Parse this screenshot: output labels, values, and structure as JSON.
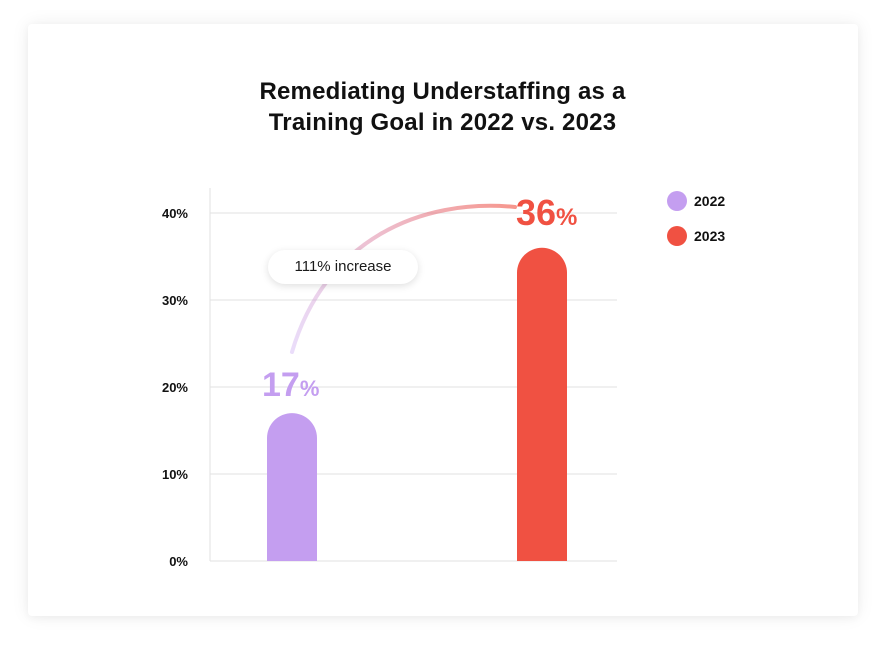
{
  "chart_data": {
    "type": "bar",
    "title_lines": [
      "Remediating Understaffing as a",
      "Training Goal in 2022 vs. 2023"
    ],
    "categories": [
      "2022",
      "2023"
    ],
    "values": [
      17,
      36
    ],
    "value_number_labels": [
      "17",
      "36"
    ],
    "value_unit": "%",
    "ylim": [
      0,
      43
    ],
    "yticks": [
      0,
      10,
      20,
      30,
      40
    ],
    "ytick_labels": [
      "0%",
      "10%",
      "20%",
      "30%",
      "40%"
    ],
    "xlabel": "",
    "ylabel": "",
    "grid": true,
    "legend": {
      "placement": "top-right",
      "entries": [
        {
          "label": "2022",
          "color": "#c49ef0"
        },
        {
          "label": "2023",
          "color": "#f05142"
        }
      ]
    },
    "annotation": "111% increase"
  },
  "colors": {
    "bar_2022": "#c49ef0",
    "bar_2023": "#f05142",
    "grid": "#e2e2e2",
    "text": "#111111"
  }
}
